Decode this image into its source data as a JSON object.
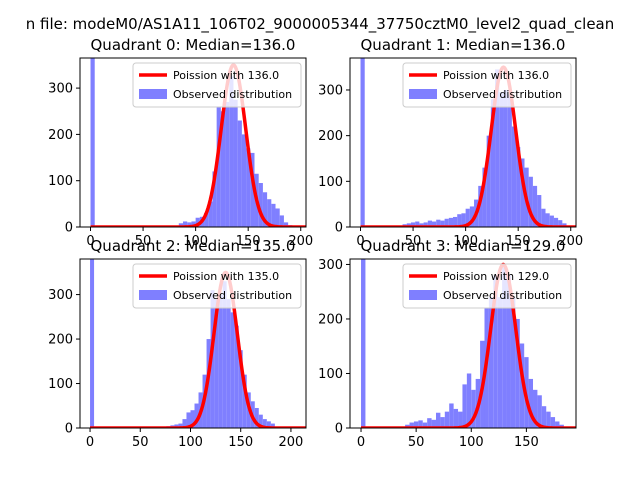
{
  "figure": {
    "suptitle": "n file: modeM0/AS1A11_106T02_9000005344_37750cztM0_level2_quad_clean"
  },
  "chart_data": [
    {
      "type": "bar",
      "title": "Quadrant 0: Median=136.0",
      "xlim": [
        -10,
        205
      ],
      "ylim": [
        0,
        365
      ],
      "xticks": [
        0,
        50,
        100,
        150,
        200
      ],
      "yticks": [
        0,
        100,
        200,
        300
      ],
      "legend_placement": "upper-right",
      "bin_width": 4,
      "series": [
        {
          "name": "Poission with 136.0",
          "kind": "line",
          "mean": 136,
          "peak": 350,
          "color": "#ff0000"
        },
        {
          "name": "Observed distribution",
          "kind": "hist",
          "color": "#7f7fff",
          "bars": [
            [
              0,
              365
            ],
            [
              84,
              8
            ],
            [
              88,
              12
            ],
            [
              92,
              10
            ],
            [
              96,
              12
            ],
            [
              100,
              20
            ],
            [
              104,
              22
            ],
            [
              108,
              30
            ],
            [
              112,
              55
            ],
            [
              116,
              120
            ],
            [
              120,
              260
            ],
            [
              124,
              250
            ],
            [
              128,
              270
            ],
            [
              132,
              325
            ],
            [
              136,
              275
            ],
            [
              140,
              230
            ],
            [
              144,
              200
            ],
            [
              148,
              170
            ],
            [
              152,
              160
            ],
            [
              156,
              115
            ],
            [
              160,
              95
            ],
            [
              164,
              75
            ],
            [
              168,
              60
            ],
            [
              172,
              50
            ],
            [
              176,
              40
            ],
            [
              180,
              25
            ],
            [
              184,
              10
            ],
            [
              188,
              4
            ]
          ]
        }
      ]
    },
    {
      "type": "bar",
      "title": "Quadrant 1: Median=136.0",
      "xlim": [
        -10,
        205
      ],
      "ylim": [
        0,
        370
      ],
      "xticks": [
        0,
        50,
        100,
        150,
        200
      ],
      "yticks": [
        0,
        100,
        200,
        300
      ],
      "legend_placement": "upper-right",
      "bin_width": 4,
      "series": [
        {
          "name": "Poission with 136.0",
          "kind": "line",
          "mean": 136,
          "peak": 350,
          "color": "#ff0000"
        },
        {
          "name": "Observed distribution",
          "kind": "hist",
          "color": "#7f7fff",
          "bars": [
            [
              0,
              370
            ],
            [
              40,
              6
            ],
            [
              44,
              8
            ],
            [
              48,
              10
            ],
            [
              52,
              12
            ],
            [
              56,
              8
            ],
            [
              60,
              10
            ],
            [
              64,
              14
            ],
            [
              68,
              12
            ],
            [
              72,
              16
            ],
            [
              76,
              14
            ],
            [
              80,
              18
            ],
            [
              84,
              20
            ],
            [
              88,
              22
            ],
            [
              92,
              28
            ],
            [
              96,
              30
            ],
            [
              100,
              40
            ],
            [
              104,
              45
            ],
            [
              108,
              60
            ],
            [
              112,
              90
            ],
            [
              116,
              130
            ],
            [
              120,
              200
            ],
            [
              124,
              280
            ],
            [
              128,
              345
            ],
            [
              132,
              295
            ],
            [
              136,
              300
            ],
            [
              140,
              290
            ],
            [
              144,
              220
            ],
            [
              148,
              175
            ],
            [
              152,
              150
            ],
            [
              156,
              130
            ],
            [
              160,
              110
            ],
            [
              164,
              90
            ],
            [
              168,
              70
            ],
            [
              172,
              40
            ],
            [
              176,
              30
            ],
            [
              180,
              25
            ],
            [
              184,
              20
            ],
            [
              188,
              15
            ],
            [
              192,
              8
            ]
          ]
        }
      ]
    },
    {
      "type": "bar",
      "title": "Quadrant 2: Median=135.0",
      "xlim": [
        -10,
        215
      ],
      "ylim": [
        0,
        380
      ],
      "xticks": [
        0,
        50,
        100,
        150,
        200
      ],
      "yticks": [
        0,
        100,
        200,
        300
      ],
      "legend_placement": "upper-right",
      "bin_width": 4,
      "series": [
        {
          "name": "Poission with 135.0",
          "kind": "line",
          "mean": 135,
          "peak": 350,
          "color": "#ff0000"
        },
        {
          "name": "Observed distribution",
          "kind": "hist",
          "color": "#7f7fff",
          "bars": [
            [
              0,
              380
            ],
            [
              76,
              4
            ],
            [
              80,
              6
            ],
            [
              84,
              8
            ],
            [
              88,
              10
            ],
            [
              92,
              20
            ],
            [
              96,
              35
            ],
            [
              100,
              40
            ],
            [
              104,
              55
            ],
            [
              108,
              80
            ],
            [
              112,
              120
            ],
            [
              116,
              200
            ],
            [
              120,
              310
            ],
            [
              124,
              290
            ],
            [
              128,
              300
            ],
            [
              132,
              330
            ],
            [
              136,
              290
            ],
            [
              140,
              260
            ],
            [
              144,
              230
            ],
            [
              148,
              175
            ],
            [
              152,
              120
            ],
            [
              156,
              80
            ],
            [
              160,
              60
            ],
            [
              164,
              45
            ],
            [
              168,
              30
            ],
            [
              172,
              20
            ],
            [
              176,
              15
            ],
            [
              180,
              10
            ]
          ]
        }
      ]
    },
    {
      "type": "bar",
      "title": "Quadrant 3: Median=129.0",
      "xlim": [
        -10,
        195
      ],
      "ylim": [
        0,
        310
      ],
      "xticks": [
        0,
        50,
        100,
        150
      ],
      "yticks": [
        0,
        100,
        200,
        300
      ],
      "legend_placement": "upper-right",
      "bin_width": 4,
      "series": [
        {
          "name": "Poission with 129.0",
          "kind": "line",
          "mean": 129,
          "peak": 300,
          "color": "#ff0000"
        },
        {
          "name": "Observed distribution",
          "kind": "hist",
          "color": "#7f7fff",
          "bars": [
            [
              0,
              310
            ],
            [
              40,
              6
            ],
            [
              44,
              10
            ],
            [
              48,
              12
            ],
            [
              52,
              14
            ],
            [
              56,
              10
            ],
            [
              60,
              18
            ],
            [
              64,
              15
            ],
            [
              68,
              28
            ],
            [
              72,
              20
            ],
            [
              76,
              30
            ],
            [
              80,
              45
            ],
            [
              84,
              35
            ],
            [
              88,
              30
            ],
            [
              92,
              80
            ],
            [
              96,
              100
            ],
            [
              100,
              70
            ],
            [
              104,
              90
            ],
            [
              108,
              160
            ],
            [
              112,
              220
            ],
            [
              116,
              240
            ],
            [
              120,
              280
            ],
            [
              124,
              240
            ],
            [
              128,
              295
            ],
            [
              132,
              280
            ],
            [
              136,
              240
            ],
            [
              140,
              200
            ],
            [
              144,
              155
            ],
            [
              148,
              130
            ],
            [
              152,
              90
            ],
            [
              156,
              70
            ],
            [
              160,
              60
            ],
            [
              164,
              40
            ],
            [
              168,
              30
            ],
            [
              172,
              20
            ],
            [
              176,
              12
            ],
            [
              180,
              6
            ]
          ]
        }
      ]
    }
  ]
}
